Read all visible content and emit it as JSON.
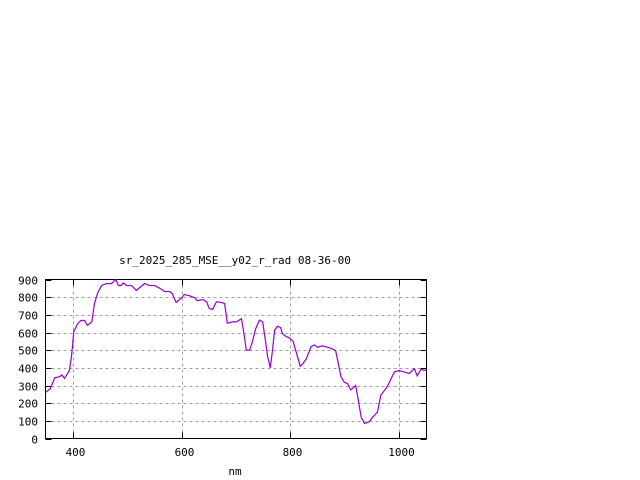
{
  "chart_data": {
    "type": "line",
    "title": "sr_2025_285_MSE__y02_r_rad 08-36-00",
    "xlabel": "nm",
    "ylabel": "",
    "xlim": [
      350,
      1050
    ],
    "ylim": [
      0,
      900
    ],
    "xticks": [
      400,
      600,
      800,
      1000
    ],
    "yticks": [
      0,
      100,
      200,
      300,
      400,
      500,
      600,
      700,
      800,
      900
    ],
    "grid": true,
    "legend": "none",
    "line_color": "#9400d3",
    "series": [
      {
        "x": [
          350,
          359,
          367,
          376,
          380,
          385,
          394,
          398,
          402,
          409,
          415,
          422,
          427,
          435,
          440,
          446,
          453,
          462,
          471,
          479,
          484,
          489,
          493,
          499,
          508,
          517,
          523,
          532,
          541,
          550,
          560,
          569,
          578,
          583,
          590,
          600,
          605,
          615,
          624,
          629,
          639,
          646,
          651,
          657,
          664,
          673,
          679,
          684,
          694,
          701,
          710,
          714,
          719,
          725,
          730,
          736,
          743,
          749,
          754,
          758,
          763,
          767,
          771,
          776,
          782,
          785,
          792,
          798,
          805,
          811,
          818,
          822,
          829,
          838,
          844,
          850,
          859,
          868,
          875,
          883,
          886,
          893,
          899,
          905,
          911,
          920,
          925,
          930,
          936,
          945,
          951,
          960,
          966,
          976,
          982,
          991,
          1000,
          1009,
          1018,
          1028,
          1033,
          1040,
          1046,
          1050
        ],
        "y": [
          260,
          283,
          345,
          350,
          360,
          340,
          385,
          470,
          605,
          650,
          668,
          668,
          640,
          660,
          765,
          826,
          866,
          877,
          877,
          900,
          866,
          866,
          880,
          866,
          866,
          838,
          855,
          877,
          866,
          866,
          850,
          832,
          832,
          820,
          770,
          797,
          815,
          808,
          797,
          780,
          787,
          774,
          736,
          730,
          774,
          770,
          765,
          653,
          660,
          660,
          678,
          607,
          500,
          500,
          545,
          620,
          670,
          660,
          555,
          465,
          400,
          500,
          612,
          635,
          628,
          595,
          577,
          570,
          550,
          485,
          410,
          420,
          450,
          520,
          530,
          517,
          524,
          517,
          510,
          498,
          455,
          350,
          318,
          310,
          275,
          300,
          210,
          120,
          85,
          95,
          120,
          150,
          245,
          285,
          320,
          377,
          385,
          377,
          368,
          395,
          355,
          393,
          385,
          390
        ]
      }
    ]
  }
}
